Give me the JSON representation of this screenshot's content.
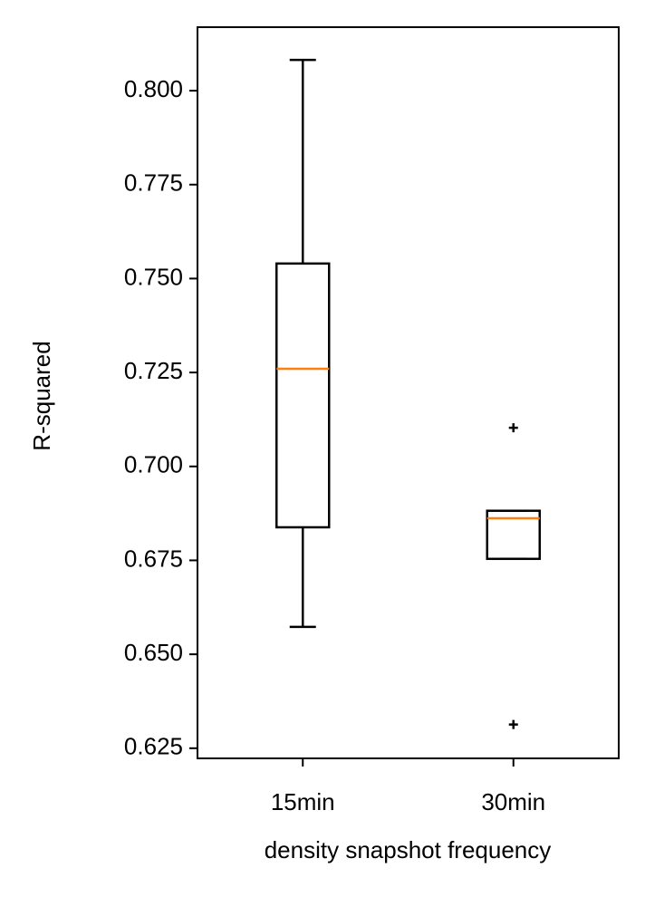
{
  "chart_data": {
    "type": "box",
    "x_label": "density snapshot frequency",
    "y_label": "R-squared",
    "categories": [
      "15min",
      "30min"
    ],
    "box_color": "#000000",
    "median_color": "#ff7f0e",
    "boxes": [
      {
        "whisker_low": 0.6573,
        "q1": 0.6838,
        "median": 0.726,
        "q3": 0.754,
        "whisker_high": 0.8082,
        "outliers": []
      },
      {
        "whisker_low": 0.6754,
        "q1": 0.6754,
        "median": 0.6862,
        "q3": 0.6882,
        "whisker_high": 0.6882,
        "outliers": [
          0.7103,
          0.6313
        ]
      }
    ],
    "ylim": [
      0.6223,
      0.8169
    ],
    "yticks": [
      0.625,
      {
        "value": 0.65,
        "label": "0.650"
      },
      0.675,
      {
        "value": 0.7,
        "label": "0.700"
      },
      0.725,
      {
        "value": 0.75,
        "label": "0.750"
      },
      0.775,
      {
        "value": 0.8,
        "label": "0.800"
      }
    ]
  }
}
